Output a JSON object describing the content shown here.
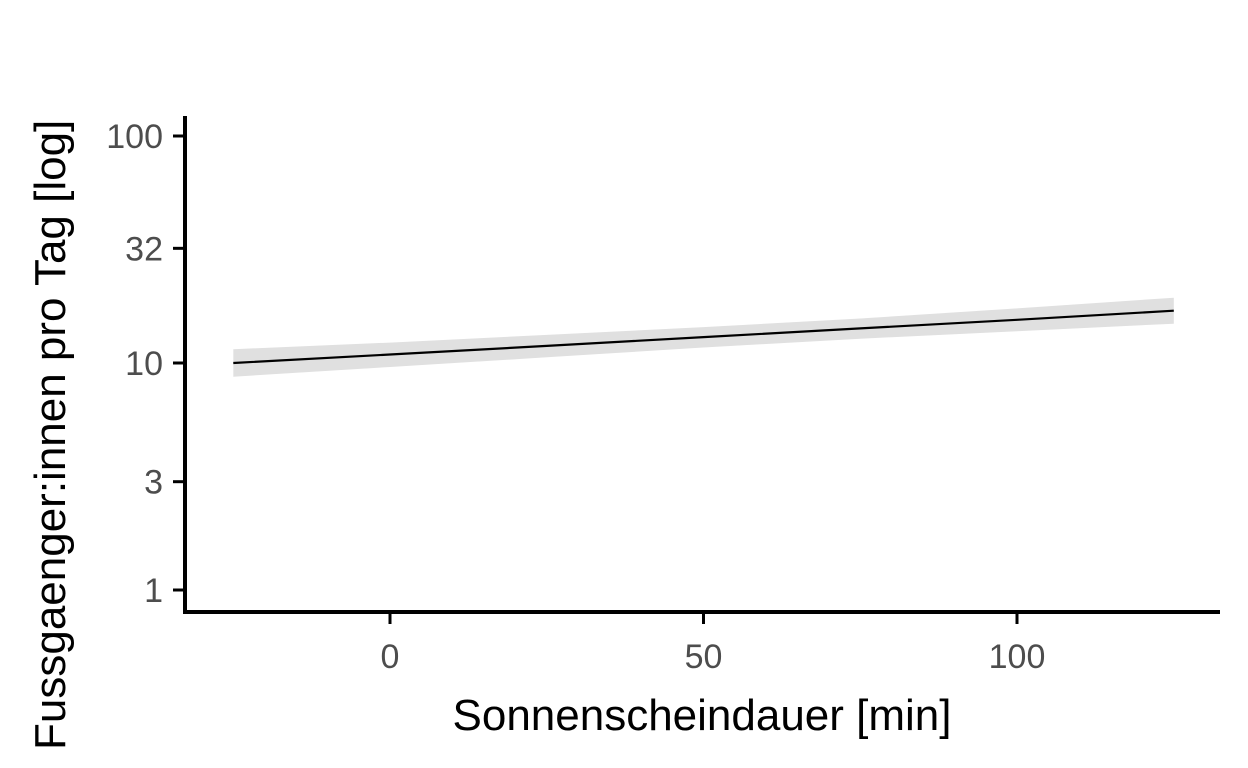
{
  "chart_data": {
    "type": "line",
    "xlabel": "Sonnenscheindauer [min]",
    "ylabel": "Fussgaenger:innen pro Tag [log]",
    "x_ticks": [
      0,
      50,
      100
    ],
    "y_ticks": [
      1,
      3,
      10,
      32,
      100
    ],
    "y_tick_labels": [
      "1",
      "3",
      "10",
      "32",
      "100"
    ],
    "y_scale": "log",
    "xlim": [
      -32,
      133
    ],
    "ylim": [
      0.9,
      115
    ],
    "grid": false,
    "series": [
      {
        "x": [
          -25,
          0,
          25,
          50,
          75,
          100,
          125
        ],
        "y": [
          10.0,
          10.9,
          11.9,
          13.0,
          14.2,
          15.5,
          17.0
        ],
        "lower": [
          8.7,
          9.6,
          10.6,
          11.7,
          12.8,
          13.8,
          14.9
        ],
        "upper": [
          11.5,
          12.3,
          13.3,
          14.4,
          15.7,
          17.4,
          19.4
        ]
      }
    ],
    "colors": {
      "line": "#000000",
      "ribbon": "#e0e0e0",
      "axis": "#000000",
      "tick_label": "#4d4d4d"
    }
  }
}
